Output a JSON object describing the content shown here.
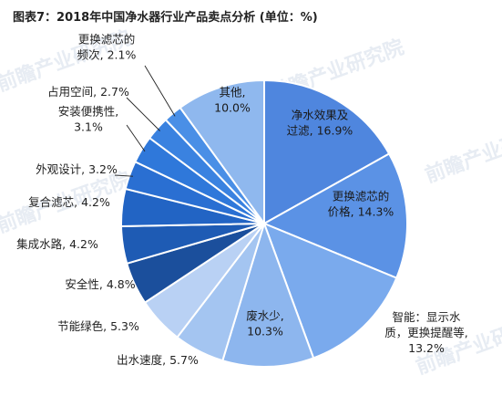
{
  "chart_data": {
    "type": "pie",
    "title": "图表7：2018年中国净水器行业产品卖点分析 (单位：%)",
    "slices": [
      {
        "label": "净水效果及过滤",
        "value": 16.9,
        "color": "#4f86de",
        "label_lines": [
          "净水效果及",
          "过滤, 16.9%"
        ]
      },
      {
        "label": "更换滤芯的价格",
        "value": 14.3,
        "color": "#5b92e5",
        "label_lines": [
          "更换滤芯的",
          "价格, 14.3%"
        ]
      },
      {
        "label": "智能：显示水质，更换提醒等",
        "value": 13.2,
        "color": "#7aaaed",
        "label_lines": [
          "智能：显示水",
          "质，更换提醒等,",
          "13.2%"
        ]
      },
      {
        "label": "废水少",
        "value": 10.3,
        "color": "#8db6ee",
        "label_lines": [
          "废水少,",
          "10.3%"
        ]
      },
      {
        "label": "出水速度",
        "value": 5.7,
        "color": "#a4c5f1",
        "label_lines": [
          "出水速度, 5.7%"
        ]
      },
      {
        "label": "节能绿色",
        "value": 5.3,
        "color": "#b9d1f4",
        "label_lines": [
          "节能绿色, 5.3%"
        ]
      },
      {
        "label": "安全性",
        "value": 4.8,
        "color": "#1b4f9c",
        "label_lines": [
          "安全性, 4.8%"
        ]
      },
      {
        "label": "集成水路",
        "value": 4.2,
        "color": "#1e5bb4",
        "label_lines": [
          "集成水路, 4.2%"
        ]
      },
      {
        "label": "复合滤芯",
        "value": 4.2,
        "color": "#2264c4",
        "label_lines": [
          "复合滤芯, 4.2%"
        ]
      },
      {
        "label": "外观设计",
        "value": 3.2,
        "color": "#2a6fd2",
        "label_lines": [
          "外观设计, 3.2%"
        ]
      },
      {
        "label": "安装便携性",
        "value": 3.1,
        "color": "#2f78da",
        "label_lines": [
          "安装便携性,",
          "3.1%"
        ]
      },
      {
        "label": "占用空间",
        "value": 2.7,
        "color": "#3a82e0",
        "label_lines": [
          "占用空间, 2.7%"
        ]
      },
      {
        "label": "更换滤芯的频次",
        "value": 2.1,
        "color": "#4a8fe6",
        "label_lines": [
          "更换滤芯的",
          "频次, 2.1%"
        ]
      },
      {
        "label": "其他",
        "value": 10.0,
        "color": "#8fb8ee",
        "label_lines": [
          "其他,",
          "10.0%"
        ]
      }
    ]
  },
  "watermark": {
    "text": "前瞻产业研究院"
  }
}
